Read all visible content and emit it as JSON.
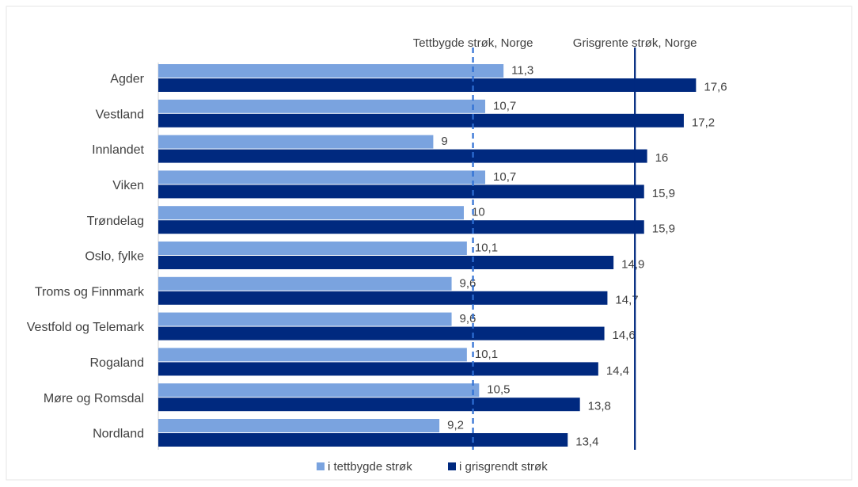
{
  "chart_data": {
    "type": "bar",
    "orientation": "horizontal",
    "categories": [
      "Agder",
      "Vestland",
      "Innlandet",
      "Viken",
      "Trøndelag",
      "Oslo, fylke",
      "Troms og Finnmark",
      "Vestfold og Telemark",
      "Rogaland",
      "Møre og Romsdal",
      "Nordland"
    ],
    "series": [
      {
        "name": "i tettbygde strøk",
        "color": "#7aa3df",
        "values": [
          11.3,
          10.7,
          9,
          10.7,
          10,
          10.1,
          9.6,
          9.6,
          10.1,
          10.5,
          9.2
        ],
        "labels": [
          "11,3",
          "10,7",
          "9",
          "10,7",
          "10",
          "10,1",
          "9,6",
          "9,6",
          "10,1",
          "10,5",
          "9,2"
        ]
      },
      {
        "name": "i grisgrendt strøk",
        "color": "#00297f",
        "values": [
          17.6,
          17.2,
          16,
          15.9,
          15.9,
          14.9,
          14.7,
          14.6,
          14.4,
          13.8,
          13.4
        ],
        "labels": [
          "17,6",
          "17,2",
          "16",
          "15,9",
          "15,9",
          "14,9",
          "14,7",
          "14,6",
          "14,4",
          "13,8",
          "13,4"
        ]
      }
    ],
    "reference_lines": [
      {
        "label": "Tettbygde strøk, Norge",
        "value": 10.3,
        "style": "dashed",
        "color": "#2e6fd4"
      },
      {
        "label": "Grisgrente strøk, Norge",
        "value": 15.6,
        "style": "solid",
        "color": "#00297f"
      }
    ],
    "xlim": [
      0,
      19
    ],
    "title": "",
    "xlabel": "",
    "ylabel": "",
    "grid": false,
    "legend_position": "bottom"
  }
}
